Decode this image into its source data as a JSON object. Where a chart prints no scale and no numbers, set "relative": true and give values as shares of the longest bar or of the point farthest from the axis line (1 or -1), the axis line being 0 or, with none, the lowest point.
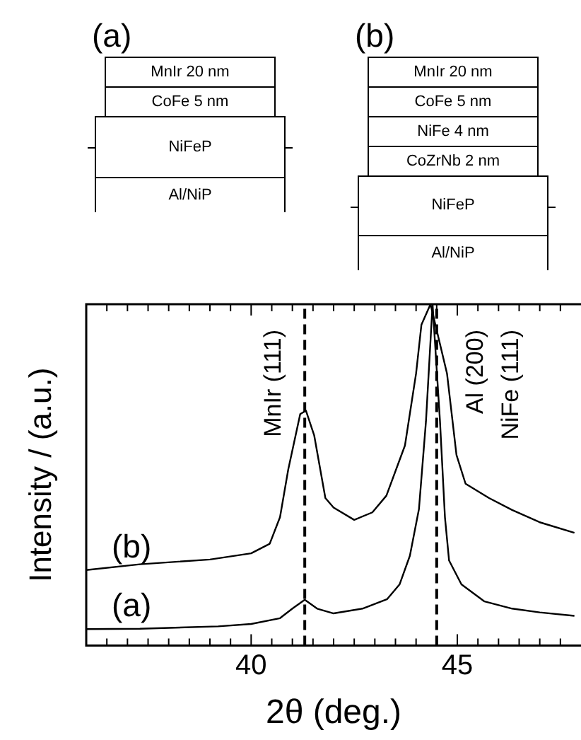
{
  "chart_data": {
    "type": "line",
    "relative": true,
    "xlabel": "2θ (deg.)",
    "ylabel": "Intensity / (a.u.)",
    "xlim": [
      36,
      48
    ],
    "xticks": [
      {
        "value": 36.5,
        "label": null
      },
      {
        "value": 37,
        "label": null
      },
      {
        "value": 37.5,
        "label": null
      },
      {
        "value": 38,
        "label": null
      },
      {
        "value": 38.5,
        "label": null
      },
      {
        "value": 39,
        "label": null
      },
      {
        "value": 39.5,
        "label": null
      },
      40,
      {
        "value": 40.5,
        "label": null
      },
      {
        "value": 41,
        "label": null
      },
      {
        "value": 41.5,
        "label": null
      },
      {
        "value": 42,
        "label": null
      },
      {
        "value": 42.5,
        "label": null
      },
      {
        "value": 43,
        "label": null
      },
      {
        "value": 43.5,
        "label": null
      },
      {
        "value": 44,
        "label": null
      },
      {
        "value": 44.5,
        "label": null
      },
      45,
      {
        "value": 45.5,
        "label": null
      },
      {
        "value": 46,
        "label": null
      },
      {
        "value": 46.5,
        "label": null
      },
      {
        "value": 47,
        "label": null
      },
      {
        "value": 47.5,
        "label": null
      }
    ],
    "marker": "none",
    "line_style": "solid",
    "legend": false,
    "series": [
      {
        "name": "(a)",
        "color": "#000000",
        "x": [
          36.0,
          37.3,
          39.2,
          40.0,
          40.7,
          41.0,
          41.3,
          41.6,
          42.0,
          42.7,
          43.3,
          43.6,
          43.85,
          44.07,
          44.24,
          44.4,
          44.58,
          44.7,
          44.8,
          45.1,
          45.66,
          46.33,
          47.0,
          47.84
        ],
        "values": [
          0.048,
          0.049,
          0.056,
          0.063,
          0.08,
          0.108,
          0.134,
          0.108,
          0.094,
          0.108,
          0.136,
          0.179,
          0.263,
          0.4,
          0.657,
          1,
          0.657,
          0.376,
          0.249,
          0.179,
          0.129,
          0.108,
          0.097,
          0.087
        ]
      },
      {
        "name": "(b)",
        "color": "#000000",
        "x": [
          36.0,
          37.3,
          39.0,
          40.0,
          40.45,
          40.7,
          40.9,
          41.19,
          41.33,
          41.53,
          41.8,
          42.0,
          42.5,
          42.94,
          43.28,
          43.73,
          44.0,
          44.13,
          44.35,
          44.75,
          44.98,
          45.2,
          45.77,
          46.33,
          47.0,
          47.84
        ],
        "values": [
          0.221,
          0.238,
          0.252,
          0.27,
          0.298,
          0.376,
          0.516,
          0.678,
          0.688,
          0.615,
          0.432,
          0.404,
          0.368,
          0.39,
          0.439,
          0.586,
          0.797,
          0.94,
          1,
          0.797,
          0.558,
          0.474,
          0.432,
          0.397,
          0.361,
          0.33
        ]
      }
    ],
    "ref_lines": [
      {
        "axis": "x",
        "value": 41.3,
        "label": "MnIr (111)",
        "line_style": "dashed",
        "color": "#000000"
      },
      {
        "axis": "x",
        "value": 44.5,
        "label": "Al (200)\nNiFe (111)",
        "line_style": "dashed",
        "color": "#000000"
      }
    ],
    "annotations": [
      "(a)",
      "MnIr 20 nm",
      "CoFe 5 nm",
      "NiFeP",
      "Al/NiP",
      "(b)",
      "MnIr 20 nm",
      "CoFe 5 nm",
      "NiFe 4 nm",
      "CoZrNb 2 nm",
      "NiFeP",
      "Al/NiP"
    ]
  }
}
